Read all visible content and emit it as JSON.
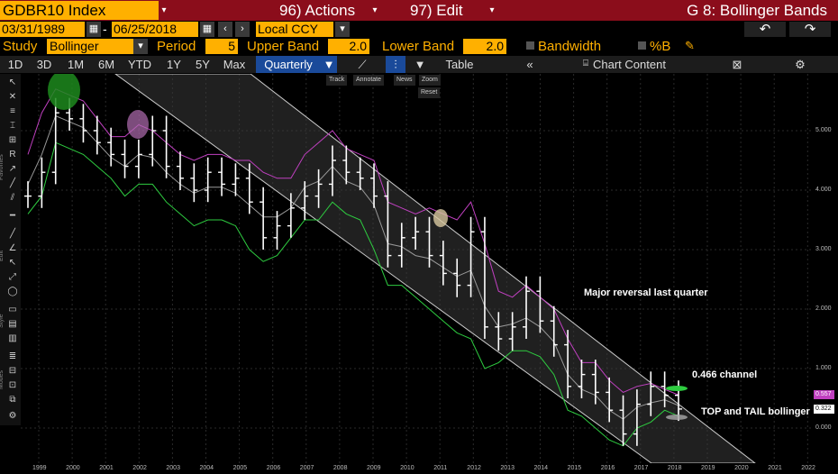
{
  "header": {
    "ticker": "GDBR10 Index",
    "actions": "96) Actions",
    "edit": "97) Edit",
    "title": "G 8: Bollinger Bands"
  },
  "dates": {
    "start": "03/31/1989",
    "dash": "-",
    "end": "06/25/2018",
    "currency": "Local CCY"
  },
  "study": {
    "label": "Study",
    "name": "Bollinger",
    "period_label": "Period",
    "period": "5",
    "upper_label": "Upper Band",
    "upper": "2.0",
    "lower_label": "Lower Band",
    "lower": "2.0",
    "bandwidth_label": "Bandwidth",
    "pctb_label": "%B"
  },
  "toolbar": {
    "ranges": [
      "1D",
      "3D",
      "1M",
      "6M",
      "YTD",
      "1Y",
      "5Y",
      "Max"
    ],
    "frequency": "Quarterly",
    "table": "Table",
    "chart_content": "Chart Content"
  },
  "chart_tools": {
    "track": "Track",
    "annotate": "Annotate",
    "news": "News",
    "zoom": "Zoom",
    "reset": "Reset"
  },
  "side_labels": {
    "favorites": "Favorites",
    "edit": "Edit",
    "style": "Style",
    "modes": "Modes"
  },
  "annotations": {
    "reversal": "Major reversal last quarter",
    "channel": "0.466 channel",
    "bollinger": "TOP and TAIL bollinger"
  },
  "price_tags": {
    "upper": "0.557",
    "close": "0.322"
  },
  "colors": {
    "upper_band": "#c040c0",
    "lower_band": "#2ecc40",
    "middle": "#999999",
    "price": "#ffffff",
    "channel_fill": "#3a3a3a"
  },
  "chart_data": {
    "type": "ohlc",
    "y_ticks": [
      "5.000",
      "4.000",
      "3.000",
      "2.000",
      "1.000",
      "0.000"
    ],
    "x_ticks": [
      "1999",
      "2000",
      "2001",
      "2002",
      "2003",
      "2004",
      "2005",
      "2006",
      "2007",
      "2008",
      "2009",
      "2010",
      "2011",
      "2012",
      "2013",
      "2014",
      "2015",
      "2016",
      "2017",
      "2018",
      "2019",
      "2020",
      "2021",
      "2022"
    ],
    "ylim": [
      -0.5,
      6.0
    ],
    "close": [
      3.9,
      4.3,
      5.3,
      5.2,
      5.0,
      4.8,
      4.6,
      4.4,
      4.6,
      5.0,
      4.4,
      4.2,
      4.0,
      4.3,
      4.1,
      4.2,
      3.8,
      3.2,
      3.4,
      3.7,
      3.9,
      4.1,
      4.5,
      4.3,
      4.2,
      3.9,
      2.9,
      3.2,
      3.3,
      2.9,
      2.6,
      2.4,
      3.3,
      1.7,
      1.5,
      1.7,
      2.3,
      1.8,
      1.4,
      0.7,
      0.9,
      0.6,
      0.3,
      -0.1,
      0.4,
      0.7,
      0.55,
      0.32
    ],
    "upper_band": [
      4.6,
      5.3,
      5.7,
      5.6,
      5.5,
      5.2,
      4.9,
      4.9,
      5.1,
      5.0,
      4.8,
      4.6,
      4.5,
      4.6,
      4.6,
      4.5,
      4.5,
      4.3,
      4.2,
      4.2,
      4.6,
      4.8,
      5.0,
      4.7,
      4.6,
      4.5,
      3.8,
      3.7,
      3.6,
      3.7,
      3.6,
      3.5,
      3.8,
      3.1,
      2.3,
      2.2,
      2.4,
      2.2,
      2.0,
      1.5,
      1.1,
      1.1,
      0.8,
      0.6,
      0.7,
      0.75,
      0.65,
      0.557
    ],
    "lower_band": [
      3.6,
      3.9,
      4.8,
      4.7,
      4.6,
      4.4,
      4.2,
      3.9,
      4.1,
      4.1,
      3.8,
      3.6,
      3.4,
      3.5,
      3.5,
      3.4,
      3.0,
      2.8,
      2.9,
      3.2,
      3.5,
      3.5,
      3.8,
      3.6,
      3.5,
      3.0,
      2.4,
      2.4,
      2.2,
      2.0,
      1.8,
      1.6,
      1.5,
      1.0,
      1.1,
      1.3,
      1.3,
      1.2,
      0.9,
      0.3,
      0.2,
      0.0,
      -0.2,
      -0.3,
      0.0,
      0.1,
      0.3,
      0.2
    ]
  }
}
